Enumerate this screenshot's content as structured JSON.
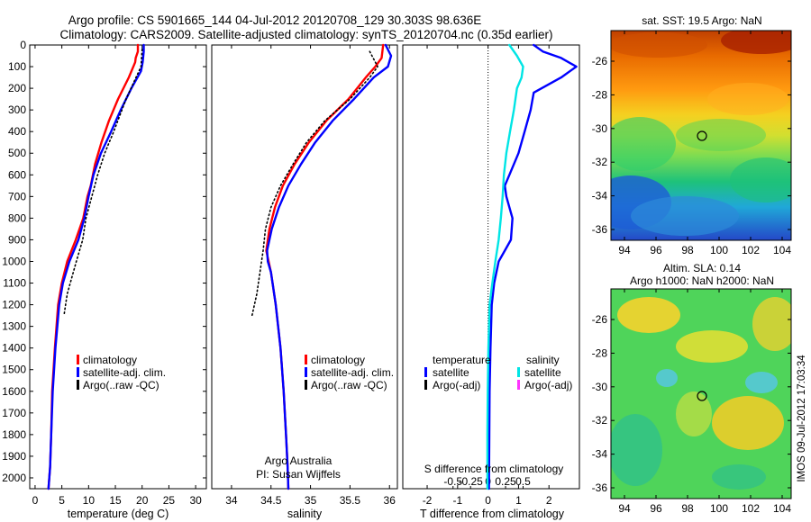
{
  "header": {
    "title_line1": "Argo profile: CS 5901665_144 04-Jul-2012 20120708_129 30.303S 98.636E",
    "title_line2": "Climatology: CARS2009. Satellite-adjusted climatology: synTS_20120704.nc (0.35d earlier)"
  },
  "footer": {
    "credit_line1": "Argo Australia",
    "credit_line2": "PI: Susan Wijffels",
    "stamp": "IMOS 09-Jul-2012 17:03:34"
  },
  "colors": {
    "climatology": "#ff0000",
    "satellite": "#0000ff",
    "argo": "#000000",
    "satellite_salinity": "#00e5e5",
    "argo_salinity": "#ff33ff"
  },
  "depth_axis": {
    "ticks": [
      0,
      100,
      200,
      300,
      400,
      500,
      600,
      700,
      800,
      900,
      1000,
      1100,
      1200,
      1300,
      1400,
      1500,
      1600,
      1700,
      1800,
      1900,
      2000
    ],
    "ylim": [
      0,
      2050
    ]
  },
  "chart_data": [
    {
      "type": "line",
      "xlabel": "temperature (deg C)",
      "ylabel": "",
      "xlim": [
        -1,
        32
      ],
      "ylim": [
        0,
        2050
      ],
      "x_ticks": [
        0,
        5,
        10,
        15,
        20,
        25,
        30
      ],
      "legend": [
        "climatology",
        "satellite-adj. clim.",
        "Argo(..raw -QC)"
      ],
      "legend_position": "lower-left",
      "series": [
        {
          "name": "climatology",
          "style": "solid",
          "color": "#ff0000",
          "x": [
            19.2,
            19.2,
            18.8,
            18.7,
            17.5,
            15.5,
            13.8,
            12.4,
            11.2,
            10.4,
            9.8,
            9.0,
            7.6,
            6.0,
            5.0,
            4.3,
            3.7,
            3.2,
            3.0,
            2.8,
            2.5
          ],
          "y": [
            0,
            30,
            60,
            80,
            150,
            250,
            350,
            450,
            550,
            650,
            700,
            800,
            900,
            1000,
            1100,
            1200,
            1400,
            1600,
            1800,
            1950,
            2050
          ]
        },
        {
          "name": "satellite-adj. clim.",
          "style": "solid",
          "color": "#0000ff",
          "x": [
            20.3,
            20.3,
            20.1,
            19.8,
            18.0,
            16.0,
            14.2,
            12.3,
            10.9,
            10.0,
            9.2,
            8.1,
            6.4,
            5.2,
            4.5,
            3.8,
            3.3,
            3.0,
            2.8,
            2.5
          ],
          "y": [
            0,
            30,
            80,
            120,
            200,
            300,
            400,
            500,
            600,
            700,
            800,
            900,
            1000,
            1100,
            1200,
            1400,
            1600,
            1800,
            1950,
            2050
          ]
        },
        {
          "name": "Argo(..raw -QC)",
          "style": "dotted",
          "color": "#000000",
          "x": [
            20.0,
            19.8,
            17.0,
            14.7,
            13.0,
            11.7,
            10.6,
            9.5,
            8.9,
            7.7,
            6.0,
            5.4
          ],
          "y": [
            20,
            100,
            250,
            400,
            500,
            600,
            700,
            800,
            900,
            1000,
            1150,
            1250
          ]
        }
      ]
    },
    {
      "type": "line",
      "xlabel": "salinity",
      "ylabel": "",
      "xlim": [
        33.75,
        36.1
      ],
      "ylim": [
        0,
        2050
      ],
      "x_ticks": [
        34,
        34.5,
        35,
        35.5,
        36
      ],
      "x_tick_labels": [
        "34",
        "34.5",
        "35",
        "35.5",
        "36"
      ],
      "legend": [
        "climatology",
        "satellite-adj. clim.",
        "Argo(..raw -QC)"
      ],
      "legend_position": "lower-right",
      "series": [
        {
          "name": "climatology",
          "style": "solid",
          "color": "#ff0000",
          "x": [
            35.92,
            35.9,
            35.82,
            35.7,
            35.48,
            35.2,
            34.98,
            34.8,
            34.65,
            34.55,
            34.48,
            34.44,
            34.5,
            34.56,
            34.62,
            34.66,
            34.69,
            34.71,
            34.72
          ],
          "y": [
            0,
            60,
            100,
            150,
            250,
            350,
            450,
            550,
            650,
            750,
            850,
            950,
            1050,
            1200,
            1400,
            1600,
            1800,
            1950,
            2050
          ]
        },
        {
          "name": "satellite-adj. clim.",
          "style": "solid",
          "color": "#0000ff",
          "x": [
            35.95,
            36.02,
            35.98,
            35.8,
            35.55,
            35.28,
            35.06,
            34.88,
            34.72,
            34.6,
            34.51,
            34.45,
            34.46,
            34.5,
            34.56,
            34.62,
            34.66,
            34.69,
            34.71,
            34.72
          ],
          "y": [
            0,
            50,
            100,
            150,
            250,
            350,
            450,
            550,
            650,
            750,
            850,
            950,
            1000,
            1050,
            1200,
            1400,
            1600,
            1800,
            1950,
            2050
          ]
        },
        {
          "name": "Argo(..raw -QC)",
          "style": "dotted",
          "color": "#000000",
          "x": [
            35.75,
            35.85,
            35.75,
            35.5,
            35.18,
            34.95,
            34.78,
            34.62,
            34.5,
            34.43,
            34.4,
            34.36,
            34.32,
            34.26
          ],
          "y": [
            30,
            100,
            150,
            250,
            350,
            450,
            550,
            650,
            750,
            850,
            950,
            1050,
            1150,
            1250
          ]
        }
      ]
    },
    {
      "type": "line",
      "xlabel": "T difference from climatology",
      "ylabel": "",
      "xlim": [
        -2.8,
        3.0
      ],
      "ylim": [
        0,
        2050
      ],
      "x_ticks": [
        -2,
        -1,
        0,
        1,
        2
      ],
      "secondary_xlabel": "S difference from climatology",
      "secondary_x_ticks": [
        -0.5,
        -0.25,
        0,
        0.25,
        0.5
      ],
      "secondary_x_tick_labels": [
        "-0.5",
        "-0.25",
        "0",
        "0.25",
        "0.5"
      ],
      "legend_headers": [
        "temperature",
        "salinity"
      ],
      "legend": [
        "satellite",
        "Argo(-adj)",
        "satellite",
        "Argo(-adj)"
      ],
      "legend_position": "lower-center",
      "zero_line": "dotted",
      "series": [
        {
          "name": "satellite",
          "group": "temperature",
          "style": "solid",
          "color": "#0000ff",
          "x": [
            1.5,
            1.8,
            2.4,
            2.9,
            2.4,
            1.5,
            1.4,
            1.2,
            1.0,
            0.7,
            0.55,
            0.6,
            0.8,
            0.75,
            0.55,
            0.35,
            0.2,
            0.12,
            0.08,
            0.05,
            0.04,
            0.03
          ],
          "y": [
            0,
            30,
            60,
            100,
            150,
            220,
            300,
            400,
            500,
            600,
            650,
            700,
            800,
            900,
            950,
            1000,
            1100,
            1200,
            1400,
            1600,
            1800,
            2050
          ]
        },
        {
          "name": "satellite",
          "group": "salinity",
          "style": "solid",
          "color": "#00e5e5",
          "x": [
            0.7,
            0.95,
            1.15,
            1.1,
            0.95,
            0.85,
            0.72,
            0.6,
            0.52,
            0.48,
            0.42,
            0.35,
            0.24,
            0.14,
            0.05,
            0.01,
            -0.01,
            -0.02,
            -0.02
          ],
          "y": [
            0,
            50,
            100,
            150,
            200,
            300,
            400,
            500,
            600,
            700,
            800,
            900,
            1000,
            1100,
            1200,
            1400,
            1600,
            1800,
            2050
          ]
        }
      ]
    }
  ],
  "maps": [
    {
      "title_line1": "sat. SST: 19.5 Argo: NaN",
      "title_line2": "",
      "x_ticks": [
        "94",
        "96",
        "98",
        "100",
        "102",
        "104"
      ],
      "y_ticks": [
        "-26",
        "-28",
        "-30",
        "-32",
        "-34",
        "-36"
      ]
    },
    {
      "title_line1": "Altim. SLA: 0.14",
      "title_line2": "Argo h1000: NaN h2000: NaN",
      "x_ticks": [
        "94",
        "96",
        "98",
        "100",
        "102",
        "104"
      ],
      "y_ticks": [
        "-26",
        "-28",
        "-30",
        "-32",
        "-34",
        "-36"
      ]
    }
  ]
}
